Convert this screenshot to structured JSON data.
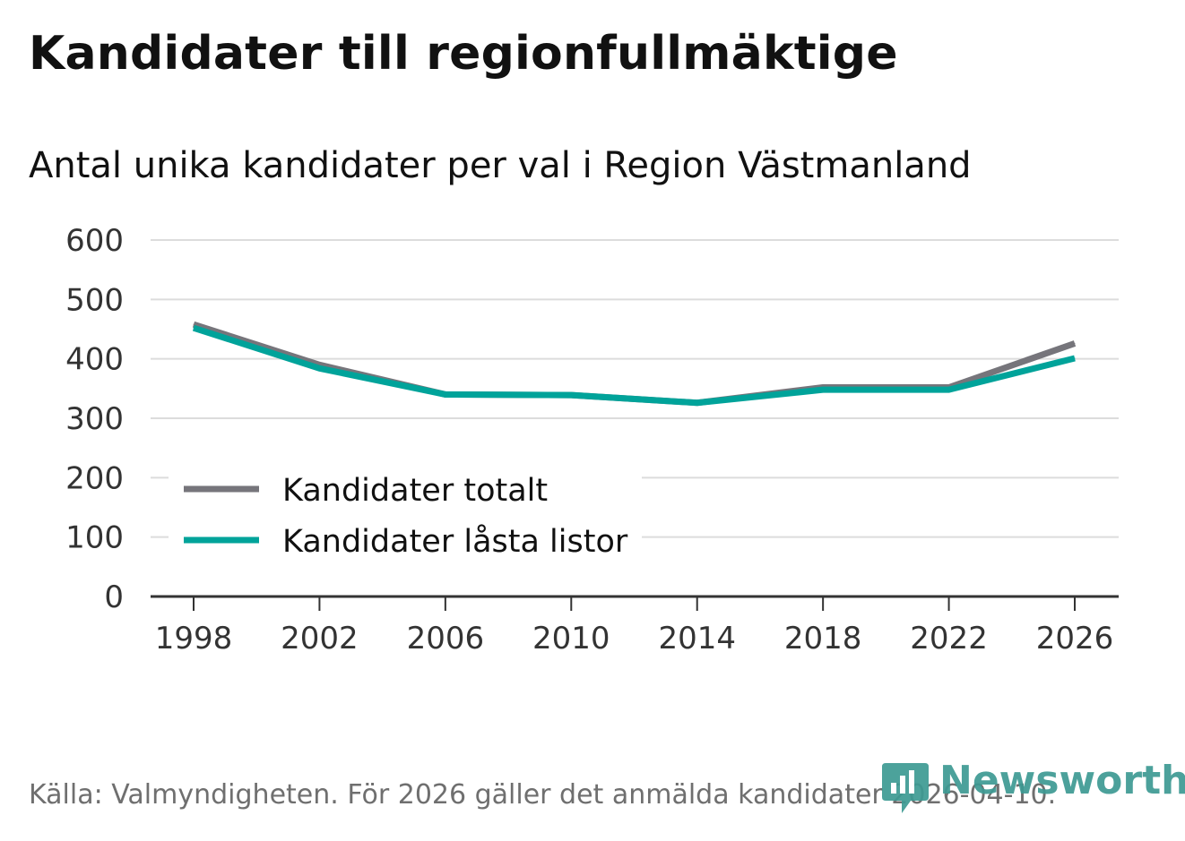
{
  "chart_data": {
    "type": "line",
    "title": "Kandidater till regionfullmäktige",
    "subtitle": "Antal unika kandidater per val i Region Västmanland",
    "xlabel": "",
    "ylabel": "",
    "ylim": [
      0,
      600
    ],
    "yticks": [
      0,
      100,
      200,
      300,
      400,
      500,
      600
    ],
    "x": [
      "1998",
      "2002",
      "2006",
      "2010",
      "2014",
      "2018",
      "2022",
      "2026"
    ],
    "series": [
      {
        "name": "Kandidater totalt",
        "color": "#76757b",
        "values": [
          458,
          390,
          340,
          339,
          326,
          352,
          352,
          426
        ]
      },
      {
        "name": "Kandidater låsta listor",
        "color": "#00a39a",
        "values": [
          452,
          384,
          340,
          339,
          326,
          348,
          348,
          401
        ]
      }
    ],
    "legend": "bottom-left",
    "grid": true
  },
  "source": "Källa: Valmyndigheten. För 2026 gäller det anmälda kandidater 2026-04-10.",
  "brand": {
    "name": "Newsworthy",
    "color": "#3d9a93",
    "icon": "newsworthy-logo-icon"
  }
}
